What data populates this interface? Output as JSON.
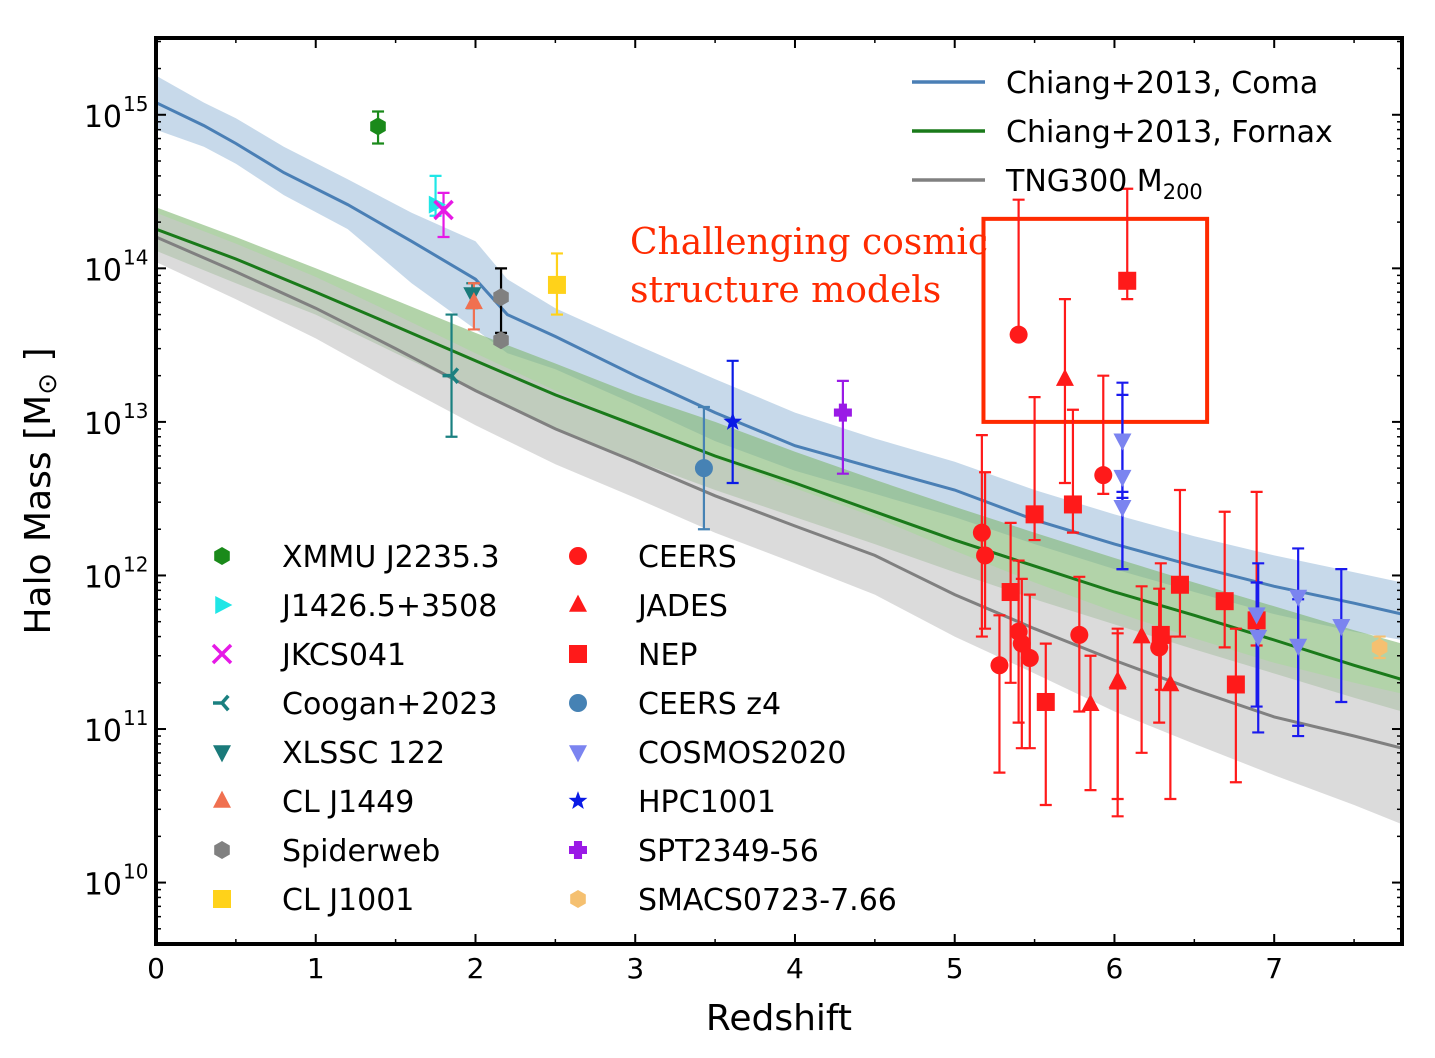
{
  "chart_data": {
    "type": "scatter",
    "title": "",
    "xlabel": "Redshift",
    "ylabel": "Halo Mass [M",
    "ylabel_symbol": "⊙",
    "ylabel_close": "]",
    "xlim": [
      0,
      7.8
    ],
    "ylim_log10": [
      9.6,
      15.5
    ],
    "yscale": "log",
    "xticks": [
      0,
      1,
      2,
      3,
      4,
      5,
      6,
      7
    ],
    "yticks": [
      {
        "exp": 10,
        "base": "10",
        "power": "10"
      },
      {
        "exp": 11,
        "base": "10",
        "power": "11"
      },
      {
        "exp": 12,
        "base": "10",
        "power": "12"
      },
      {
        "exp": 13,
        "base": "10",
        "power": "13"
      },
      {
        "exp": 14,
        "base": "10",
        "power": "14"
      },
      {
        "exp": 15,
        "base": "10",
        "power": "15"
      }
    ],
    "grid": false,
    "colors": {
      "coma": "#4a7fb5",
      "coma_band": "#a9c4de",
      "fornax": "#1a7a1a",
      "fornax_band": "#7fb56f",
      "tng": "#808080",
      "tng_band": "#c8c8c8",
      "highlight": "#ff2a00"
    },
    "line_series": [
      {
        "key": "coma",
        "name": "Chiang+2013, Coma",
        "color": "#4a7fb5",
        "x": [
          0,
          0.3,
          0.5,
          0.8,
          1.2,
          1.6,
          2.0,
          2.2,
          2.5,
          3.0,
          3.5,
          4.0,
          4.5,
          5.0,
          5.5,
          6.0,
          6.5,
          7.0,
          7.5,
          7.8
        ],
        "y": [
          1200000000000000.0,
          850000000000000.0,
          650000000000000.0,
          420000000000000.0,
          260000000000000.0,
          150000000000000.0,
          85000000000000.0,
          50000000000000.0,
          36000000000000.0,
          20000000000000.0,
          11500000000000.0,
          7000000000000.0,
          5000000000000.0,
          3600000000000.0,
          2300000000000.0,
          1600000000000.0,
          1150000000000.0,
          850000000000.0,
          660000000000.0,
          560000000000.0
        ],
        "band_lo": [
          800000000000000.0,
          620000000000000.0,
          480000000000000.0,
          300000000000000.0,
          180000000000000.0,
          80000000000000.0,
          40000000000000.0,
          28000000000000.0,
          22000000000000.0,
          13000000000000.0,
          7500000000000.0,
          4800000000000.0,
          3400000000000.0,
          2400000000000.0,
          1600000000000.0,
          1100000000000.0,
          780000000000.0,
          560000000000.0,
          430000000000.0,
          380000000000.0
        ],
        "band_hi": [
          1800000000000000.0,
          1200000000000000.0,
          950000000000000.0,
          620000000000000.0,
          380000000000000.0,
          230000000000000.0,
          150000000000000.0,
          85000000000000.0,
          55000000000000.0,
          32000000000000.0,
          19000000000000.0,
          11500000000000.0,
          7800000000000.0,
          5500000000000.0,
          3600000000000.0,
          2500000000000.0,
          1800000000000.0,
          1350000000000.0,
          1050000000000.0,
          900000000000.0
        ]
      },
      {
        "key": "fornax",
        "name": "Chiang+2013, Fornax",
        "color": "#1a7a1a",
        "x": [
          0,
          0.5,
          1.0,
          1.5,
          2.0,
          2.5,
          3.0,
          3.5,
          4.0,
          4.5,
          5.0,
          5.5,
          6.0,
          6.5,
          7.0,
          7.5,
          7.8
        ],
        "y": [
          180000000000000.0,
          115000000000000.0,
          70000000000000.0,
          42000000000000.0,
          25000000000000.0,
          15000000000000.0,
          9500000000000.0,
          6000000000000.0,
          4000000000000.0,
          2600000000000.0,
          1700000000000.0,
          1150000000000.0,
          780000000000.0,
          550000000000.0,
          380000000000.0,
          260000000000.0,
          210000000000.0
        ],
        "band_lo": [
          130000000000000.0,
          80000000000000.0,
          50000000000000.0,
          28000000000000.0,
          16000000000000.0,
          9000000000000.0,
          5600000000000.0,
          3600000000000.0,
          2400000000000.0,
          1600000000000.0,
          1050000000000.0,
          700000000000.0,
          480000000000.0,
          330000000000.0,
          230000000000.0,
          160000000000.0,
          130000000000.0
        ],
        "band_hi": [
          250000000000000.0,
          160000000000000.0,
          100000000000000.0,
          62000000000000.0,
          38000000000000.0,
          24000000000000.0,
          15000000000000.0,
          10000000000000.0,
          6400000000000.0,
          4200000000000.0,
          2800000000000.0,
          1900000000000.0,
          1300000000000.0,
          900000000000.0,
          630000000000.0,
          440000000000.0,
          360000000000.0
        ]
      },
      {
        "key": "tng",
        "name": "TNG300 M",
        "sub": "200",
        "color": "#808080",
        "x": [
          0,
          0.5,
          1.0,
          1.5,
          2.0,
          2.5,
          3.0,
          3.5,
          4.0,
          4.5,
          5.0,
          5.5,
          6.0,
          6.5,
          7.0,
          7.5,
          7.8
        ],
        "y": [
          160000000000000.0,
          95000000000000.0,
          55000000000000.0,
          30000000000000.0,
          16000000000000.0,
          9000000000000.0,
          5500000000000.0,
          3300000000000.0,
          2100000000000.0,
          1350000000000.0,
          750000000000.0,
          450000000000.0,
          280000000000.0,
          180000000000.0,
          120000000000.0,
          90000000000.0,
          75000000000.0
        ],
        "band_lo": [
          110000000000000.0,
          63000000000000.0,
          35000000000000.0,
          18000000000000.0,
          9500000000000.0,
          5300000000000.0,
          3200000000000.0,
          1900000000000.0,
          1200000000000.0,
          750000000000.0,
          400000000000.0,
          230000000000.0,
          130000000000.0,
          80000000000.0,
          50000000000.0,
          32000000000.0,
          24000000000.0
        ],
        "band_hi": [
          230000000000000.0,
          145000000000000.0,
          88000000000000.0,
          50000000000000.0,
          28000000000000.0,
          16000000000000.0,
          9500000000000.0,
          5800000000000.0,
          3700000000000.0,
          2400000000000.0,
          1450000000000.0,
          900000000000.0,
          580000000000.0,
          390000000000.0,
          270000000000.0,
          200000000000.0,
          170000000000.0
        ]
      }
    ],
    "legend_lines_placement": "top-right",
    "point_series": [
      {
        "name": "XMMU J2235.3",
        "color": "#1a8a1a",
        "marker": "hexagon",
        "points": [
          {
            "x": 1.39,
            "y": 840000000000000.0,
            "lo": 650000000000000.0,
            "hi": 1050000000000000.0
          }
        ]
      },
      {
        "name": "J1426.5+3508",
        "color": "#1fe6e6",
        "marker": "triangle-right",
        "points": [
          {
            "x": 1.75,
            "y": 260000000000000.0,
            "lo": 220000000000000.0,
            "hi": 400000000000000.0
          }
        ]
      },
      {
        "name": "JKCS041",
        "color": "#e619e6",
        "marker": "x",
        "points": [
          {
            "x": 1.8,
            "y": 240000000000000.0,
            "lo": 160000000000000.0,
            "hi": 310000000000000.0
          }
        ]
      },
      {
        "name": "Coogan+2023",
        "color": "#1a8080",
        "marker": "tri-left",
        "points": [
          {
            "x": 1.85,
            "y": 20000000000000.0,
            "lo": 8000000000000.0,
            "hi": 50000000000000.0
          }
        ]
      },
      {
        "name": "XLSSC 122",
        "color": "#1a7a7a",
        "marker": "triangle-down",
        "points": [
          {
            "x": 1.98,
            "y": 68000000000000.0,
            "lo": 55000000000000.0,
            "hi": 80000000000000.0
          }
        ]
      },
      {
        "name": "CL J1449",
        "color": "#f07050",
        "marker": "triangle-up",
        "points": [
          {
            "x": 1.99,
            "y": 60000000000000.0,
            "lo": 40000000000000.0,
            "hi": 80000000000000.0
          }
        ]
      },
      {
        "name": "Spiderweb",
        "color": "#808080",
        "marker": "hexagon",
        "errcolor": "#000000",
        "points": [
          {
            "x": 2.16,
            "y": 65000000000000.0,
            "lo": 38000000000000.0,
            "hi": 100000000000000.0
          },
          {
            "x": 2.16,
            "y": 34000000000000.0,
            "lo": 32000000000000.0,
            "hi": 36000000000000.0
          }
        ]
      },
      {
        "name": "CL J1001",
        "color": "#ffd21a",
        "marker": "square",
        "points": [
          {
            "x": 2.51,
            "y": 78000000000000.0,
            "lo": 50000000000000.0,
            "hi": 125000000000000.0
          }
        ]
      },
      {
        "name": "CEERS",
        "color": "#ff1a1a",
        "marker": "circle",
        "points": [
          {
            "x": 5.17,
            "y": 1900000000000.0,
            "lo": 400000000000.0,
            "hi": 8200000000000.0
          },
          {
            "x": 5.19,
            "y": 1350000000000.0,
            "lo": 450000000000.0,
            "hi": 4700000000000.0
          },
          {
            "x": 5.28,
            "y": 260000000000.0,
            "lo": 52000000000.0,
            "hi": 550000000000.0
          },
          {
            "x": 5.4,
            "y": 37000000000000.0,
            "lo": 35000000000000.0,
            "hi": 280000000000000.0
          },
          {
            "x": 5.4,
            "y": 430000000000.0,
            "lo": 110000000000.0,
            "hi": 1250000000000.0
          },
          {
            "x": 5.42,
            "y": 360000000000.0,
            "lo": 75000000000.0,
            "hi": 950000000000.0
          },
          {
            "x": 5.47,
            "y": 290000000000.0,
            "lo": 75000000000.0,
            "hi": 750000000000.0
          },
          {
            "x": 5.78,
            "y": 410000000000.0,
            "lo": 130000000000.0,
            "hi": 980000000000.0
          },
          {
            "x": 5.93,
            "y": 4500000000000.0,
            "lo": 3400000000000.0,
            "hi": 20000000000000.0
          },
          {
            "x": 6.28,
            "y": 340000000000.0,
            "lo": 110000000000.0,
            "hi": 820000000000.0
          }
        ]
      },
      {
        "name": "JADES",
        "color": "#ff1a1a",
        "marker": "triangle-up",
        "points": [
          {
            "x": 5.69,
            "y": 19000000000000.0,
            "lo": 4000000000000.0,
            "hi": 63000000000000.0
          },
          {
            "x": 5.85,
            "y": 145000000000.0,
            "lo": 40000000000.0,
            "hi": 300000000000.0
          },
          {
            "x": 6.02,
            "y": 205000000000.0,
            "lo": 27000000000.0,
            "hi": 450000000000.0
          },
          {
            "x": 6.02,
            "y": 200000000000.0,
            "lo": 35000000000.0,
            "hi": 420000000000.0
          },
          {
            "x": 6.17,
            "y": 400000000000.0,
            "lo": 70000000000.0,
            "hi": 850000000000.0
          },
          {
            "x": 6.35,
            "y": 195000000000.0,
            "lo": 35000000000.0,
            "hi": 400000000000.0
          }
        ]
      },
      {
        "name": "NEP",
        "color": "#ff1a1a",
        "marker": "square",
        "points": [
          {
            "x": 5.35,
            "y": 780000000000.0,
            "lo": 200000000000.0,
            "hi": 2200000000000.0
          },
          {
            "x": 5.5,
            "y": 2500000000000.0,
            "lo": 1700000000000.0,
            "hi": 14500000000000.0
          },
          {
            "x": 5.57,
            "y": 150000000000.0,
            "lo": 32000000000.0,
            "hi": 360000000000.0
          },
          {
            "x": 5.74,
            "y": 2900000000000.0,
            "lo": 1900000000000.0,
            "hi": 12000000000000.0
          },
          {
            "x": 6.08,
            "y": 83000000000000.0,
            "lo": 63000000000000.0,
            "hi": 330000000000000.0
          },
          {
            "x": 6.29,
            "y": 410000000000.0,
            "lo": 180000000000.0,
            "hi": 1200000000000.0
          },
          {
            "x": 6.41,
            "y": 870000000000.0,
            "lo": 400000000000.0,
            "hi": 3600000000000.0
          },
          {
            "x": 6.69,
            "y": 680000000000.0,
            "lo": 340000000000.0,
            "hi": 2600000000000.0
          },
          {
            "x": 6.76,
            "y": 195000000000.0,
            "lo": 45000000000.0,
            "hi": 450000000000.0
          },
          {
            "x": 6.89,
            "y": 510000000000.0,
            "lo": 350000000000.0,
            "hi": 3500000000000.0
          }
        ]
      },
      {
        "name": "CEERS z4",
        "color": "#4682b4",
        "marker": "circle",
        "points": [
          {
            "x": 3.43,
            "y": 5000000000000.0,
            "lo": 2000000000000.0,
            "hi": 12500000000000.0
          }
        ]
      },
      {
        "name": "COSMOS2020",
        "color": "#7b84f0",
        "marker": "triangle-down",
        "errcolor": "#1a1aee",
        "points": [
          {
            "x": 6.05,
            "y": 7600000000000.0,
            "lo": 3200000000000.0,
            "hi": 18000000000000.0
          },
          {
            "x": 6.05,
            "y": 4400000000000.0,
            "lo": 1100000000000.0,
            "hi": 15000000000000.0
          },
          {
            "x": 6.05,
            "y": 2800000000000.0,
            "lo": 1100000000000.0,
            "hi": 3500000000000.0
          },
          {
            "x": 6.89,
            "y": 560000000000.0,
            "lo": 140000000000.0,
            "hi": 900000000000.0
          },
          {
            "x": 6.9,
            "y": 400000000000.0,
            "lo": 95000000000.0,
            "hi": 1200000000000.0
          },
          {
            "x": 7.15,
            "y": 730000000000.0,
            "lo": 105000000000.0,
            "hi": 1500000000000.0
          },
          {
            "x": 7.15,
            "y": 350000000000.0,
            "lo": 90000000000.0,
            "hi": 700000000000.0
          },
          {
            "x": 7.42,
            "y": 470000000000.0,
            "lo": 150000000000.0,
            "hi": 1100000000000.0
          }
        ]
      },
      {
        "name": "HPC1001",
        "color": "#0a1ae6",
        "marker": "star",
        "points": [
          {
            "x": 3.61,
            "y": 10000000000000.0,
            "lo": 4000000000000.0,
            "hi": 25000000000000.0
          }
        ]
      },
      {
        "name": "SPT2349-56",
        "color": "#9a1ae6",
        "marker": "plus",
        "points": [
          {
            "x": 4.3,
            "y": 11500000000000.0,
            "lo": 4600000000000.0,
            "hi": 18500000000000.0
          }
        ]
      },
      {
        "name": "SMACS0723-7.66",
        "color": "#f5c070",
        "marker": "hexagon",
        "points": [
          {
            "x": 7.66,
            "y": 340000000000.0,
            "lo": 290000000000.0,
            "hi": 400000000000.0
          }
        ]
      }
    ],
    "annotation": {
      "lines": [
        "Challenging cosmic",
        "structure models"
      ],
      "color": "#ff2a00"
    },
    "highlight_box": {
      "x0": 5.18,
      "x1": 6.58,
      "y0": 10000000000000.0,
      "y1": 210000000000000.0
    }
  }
}
